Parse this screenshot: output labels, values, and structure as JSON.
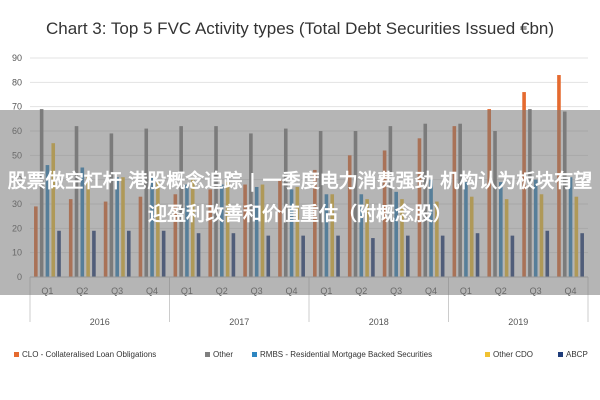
{
  "chart_data": {
    "type": "bar",
    "title": "Chart 3: Top 5 FVC Activity types (Total Debt Securities Issued €bn)",
    "xlabel": "",
    "ylabel": "",
    "ylim": [
      0,
      90
    ],
    "yticks": [
      "0",
      "10",
      "20",
      "30",
      "40",
      "50",
      "60",
      "70",
      "80",
      "90"
    ],
    "grid": true,
    "legend_position": "bottom",
    "categories": [
      "Q1",
      "Q2",
      "Q3",
      "Q4",
      "Q1",
      "Q2",
      "Q3",
      "Q4",
      "Q1",
      "Q2",
      "Q3",
      "Q4",
      "Q1",
      "Q2",
      "Q3",
      "Q4"
    ],
    "years": [
      "2016",
      "2017",
      "2018",
      "2019"
    ],
    "series": [
      {
        "name": "CLO - Collateralised Loan Obligations",
        "color": "#e56a2f",
        "values": [
          29,
          32,
          31,
          33,
          34,
          36,
          38,
          40,
          44,
          50,
          52,
          57,
          62,
          69,
          76,
          83
        ]
      },
      {
        "name": "Other",
        "color": "#7f7f7f",
        "values": [
          69,
          62,
          59,
          61,
          62,
          62,
          59,
          61,
          60,
          60,
          62,
          63,
          63,
          60,
          69,
          68
        ]
      },
      {
        "name": "RMBS - Residential Mortgage Backed Securities",
        "color": "#2e86c1",
        "values": [
          46,
          45,
          41,
          41,
          38,
          38,
          37,
          36,
          34,
          34,
          35,
          40,
          39,
          39,
          40,
          41
        ]
      },
      {
        "name": "Other CDO",
        "color": "#f1c232",
        "values": [
          55,
          42,
          41,
          40,
          40,
          39,
          38,
          37,
          34,
          32,
          32,
          31,
          33,
          32,
          34,
          33
        ]
      },
      {
        "name": "ABCP",
        "color": "#1f3d7a",
        "values": [
          19,
          19,
          19,
          19,
          18,
          18,
          17,
          17,
          17,
          16,
          17,
          17,
          18,
          17,
          19,
          18
        ]
      }
    ]
  },
  "overlay": {
    "text": "股票做空杠杆 港股概念追踪 | 一季度电力消费强劲 机构认为板块有望迎盈利改善和价值重估（附概念股）"
  }
}
